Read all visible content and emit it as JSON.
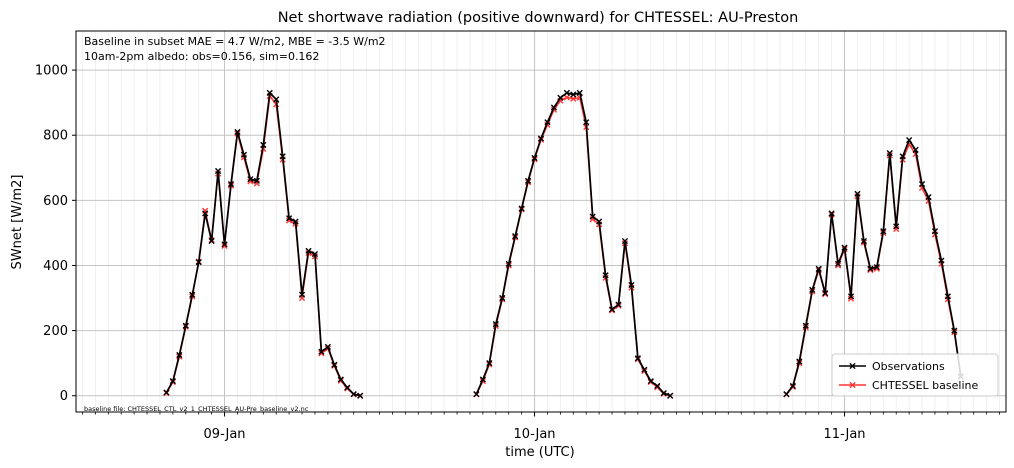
{
  "chart_data": {
    "type": "line",
    "title": "Net shortwave radiation (positive downward) for CHTESSEL: AU-Preston",
    "xlabel": "time (UTC)",
    "ylabel": "SWnet [W/m2]",
    "ylim": [
      -50,
      1120
    ],
    "xlim": [
      -11.5,
      60.5
    ],
    "yticks": [
      0,
      200,
      400,
      600,
      800,
      1000
    ],
    "xticks": [
      {
        "pos": 0,
        "label": "09-Jan"
      },
      {
        "pos": 24,
        "label": "10-Jan"
      },
      {
        "pos": 48,
        "label": "11-Jan"
      }
    ],
    "grid": true,
    "legend_position": "lower-right",
    "annotations": [
      "Baseline in subset MAE = 4.7 W/m2, MBE = -3.5 W/m2",
      "10am-2pm albedo: obs=0.156, sim=0.162"
    ],
    "footnote": "baseline file: CHTESSEL_CTL_v2_1_CHTESSEL_AU-Pre_baseline_v2.nc",
    "series": [
      {
        "name": "Observations",
        "color": "#000000",
        "marker": "x",
        "segments": [
          [
            [
              -4.5,
              10
            ],
            [
              -4.0,
              45
            ],
            [
              -3.5,
              125
            ],
            [
              -3.0,
              215
            ],
            [
              -2.5,
              310
            ],
            [
              -2.0,
              410
            ],
            [
              -1.5,
              560
            ],
            [
              -1.0,
              475
            ],
            [
              -0.5,
              690
            ],
            [
              0.0,
              465
            ],
            [
              0.5,
              650
            ],
            [
              1.0,
              810
            ],
            [
              1.5,
              740
            ],
            [
              2.0,
              665
            ],
            [
              2.5,
              660
            ],
            [
              3.0,
              770
            ],
            [
              3.5,
              930
            ],
            [
              4.0,
              910
            ],
            [
              4.5,
              735
            ],
            [
              5.0,
              545
            ],
            [
              5.5,
              535
            ],
            [
              6.0,
              310
            ],
            [
              6.5,
              445
            ],
            [
              7.0,
              435
            ],
            [
              7.5,
              135
            ],
            [
              8.0,
              150
            ],
            [
              8.5,
              95
            ],
            [
              9.0,
              50
            ],
            [
              9.5,
              25
            ],
            [
              10.0,
              5
            ],
            [
              10.5,
              0
            ]
          ],
          [
            [
              19.5,
              5
            ],
            [
              20.0,
              50
            ],
            [
              20.5,
              100
            ],
            [
              21.0,
              220
            ],
            [
              21.5,
              300
            ],
            [
              22.0,
              405
            ],
            [
              22.5,
              490
            ],
            [
              23.0,
              575
            ],
            [
              23.5,
              660
            ],
            [
              24.0,
              730
            ],
            [
              24.5,
              790
            ],
            [
              25.0,
              840
            ],
            [
              25.5,
              885
            ],
            [
              26.0,
              915
            ],
            [
              26.5,
              930
            ],
            [
              27.0,
              925
            ],
            [
              27.5,
              930
            ],
            [
              28.0,
              840
            ],
            [
              28.5,
              550
            ],
            [
              29.0,
              535
            ],
            [
              29.5,
              370
            ],
            [
              30.0,
              265
            ],
            [
              30.5,
              280
            ],
            [
              31.0,
              475
            ],
            [
              31.5,
              340
            ],
            [
              32.0,
              115
            ],
            [
              32.5,
              80
            ],
            [
              33.0,
              45
            ],
            [
              33.5,
              30
            ],
            [
              34.0,
              8
            ],
            [
              34.5,
              0
            ]
          ],
          [
            [
              43.5,
              5
            ],
            [
              44.0,
              30
            ],
            [
              44.5,
              105
            ],
            [
              45.0,
              215
            ],
            [
              45.5,
              325
            ],
            [
              46.0,
              390
            ],
            [
              46.5,
              315
            ],
            [
              47.0,
              560
            ],
            [
              47.5,
              405
            ],
            [
              48.0,
              455
            ],
            [
              48.5,
              305
            ],
            [
              49.0,
              620
            ],
            [
              49.5,
              475
            ],
            [
              50.0,
              390
            ],
            [
              50.5,
              395
            ],
            [
              51.0,
              505
            ],
            [
              51.5,
              745
            ],
            [
              52.0,
              520
            ],
            [
              52.5,
              735
            ],
            [
              53.0,
              785
            ],
            [
              53.5,
              755
            ],
            [
              54.0,
              650
            ],
            [
              54.5,
              610
            ],
            [
              55.0,
              505
            ],
            [
              55.5,
              415
            ],
            [
              56.0,
              305
            ],
            [
              56.5,
              200
            ],
            [
              57.0,
              60
            ]
          ]
        ]
      },
      {
        "name": "CHTESSEL baseline",
        "color": "#ff3333",
        "marker": "x",
        "segments": [
          [
            [
              -4.5,
              8
            ],
            [
              -4.0,
              42
            ],
            [
              -3.5,
              120
            ],
            [
              -3.0,
              212
            ],
            [
              -2.5,
              305
            ],
            [
              -2.0,
              412
            ],
            [
              -1.5,
              568
            ],
            [
              -1.0,
              478
            ],
            [
              -0.5,
              682
            ],
            [
              0.0,
              460
            ],
            [
              0.5,
              645
            ],
            [
              1.0,
              805
            ],
            [
              1.5,
              732
            ],
            [
              2.0,
              658
            ],
            [
              2.5,
              652
            ],
            [
              3.0,
              758
            ],
            [
              3.5,
              920
            ],
            [
              4.0,
              895
            ],
            [
              4.5,
              725
            ],
            [
              5.0,
              538
            ],
            [
              5.5,
              528
            ],
            [
              6.0,
              300
            ],
            [
              6.5,
              438
            ],
            [
              7.0,
              428
            ],
            [
              7.5,
              130
            ],
            [
              8.0,
              145
            ],
            [
              8.5,
              92
            ],
            [
              9.0,
              46
            ],
            [
              9.5,
              22
            ],
            [
              10.0,
              4
            ],
            [
              10.5,
              0
            ]
          ],
          [
            [
              19.5,
              4
            ],
            [
              20.0,
              45
            ],
            [
              20.5,
              96
            ],
            [
              21.0,
              214
            ],
            [
              21.5,
              296
            ],
            [
              22.0,
              400
            ],
            [
              22.5,
              486
            ],
            [
              23.0,
              572
            ],
            [
              23.5,
              656
            ],
            [
              24.0,
              726
            ],
            [
              24.5,
              786
            ],
            [
              25.0,
              832
            ],
            [
              25.5,
              878
            ],
            [
              26.0,
              906
            ],
            [
              26.5,
              916
            ],
            [
              27.0,
              912
            ],
            [
              27.5,
              915
            ],
            [
              28.0,
              825
            ],
            [
              28.5,
              542
            ],
            [
              29.0,
              526
            ],
            [
              29.5,
              362
            ],
            [
              30.0,
              262
            ],
            [
              30.5,
              276
            ],
            [
              31.0,
              468
            ],
            [
              31.5,
              332
            ],
            [
              32.0,
              112
            ],
            [
              32.5,
              76
            ],
            [
              33.0,
              42
            ],
            [
              33.5,
              26
            ],
            [
              34.0,
              6
            ],
            [
              34.5,
              0
            ]
          ],
          [
            [
              43.5,
              4
            ],
            [
              44.0,
              27
            ],
            [
              44.5,
              100
            ],
            [
              45.0,
              210
            ],
            [
              45.5,
              320
            ],
            [
              46.0,
              386
            ],
            [
              46.5,
              312
            ],
            [
              47.0,
              556
            ],
            [
              47.5,
              400
            ],
            [
              48.0,
              450
            ],
            [
              48.5,
              298
            ],
            [
              49.0,
              612
            ],
            [
              49.5,
              470
            ],
            [
              50.0,
              386
            ],
            [
              50.5,
              390
            ],
            [
              51.0,
              500
            ],
            [
              51.5,
              738
            ],
            [
              52.0,
              512
            ],
            [
              52.5,
              725
            ],
            [
              53.0,
              772
            ],
            [
              53.5,
              742
            ],
            [
              54.0,
              638
            ],
            [
              54.5,
              598
            ],
            [
              55.0,
              495
            ],
            [
              55.5,
              405
            ],
            [
              56.0,
              296
            ],
            [
              56.5,
              195
            ],
            [
              57.0,
              58
            ]
          ]
        ]
      }
    ]
  }
}
